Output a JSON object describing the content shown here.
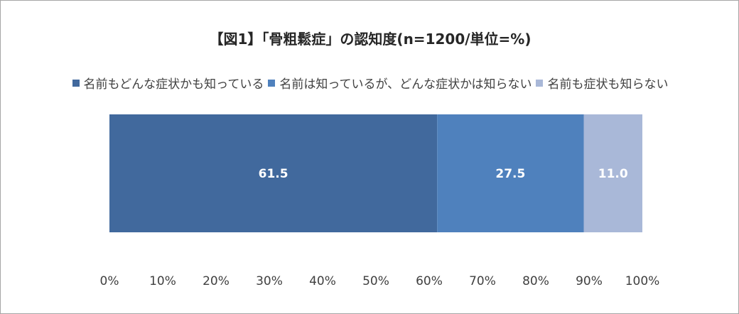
{
  "chart_data": {
    "type": "bar",
    "orientation": "horizontal",
    "stacked": true,
    "title": "【図1】「骨粗鬆症」の認知度(n=1200/単位=%)",
    "categories": [
      ""
    ],
    "series": [
      {
        "name": "名前もどんな症状かも知っている",
        "values": [
          61.5
        ],
        "color": "#41699d"
      },
      {
        "name": "名前は知っているが、どんな症状かは知らない",
        "values": [
          27.5
        ],
        "color": "#4f81bd"
      },
      {
        "name": "名前も症状も知らない",
        "values": [
          11.0
        ],
        "color": "#a9b8d8"
      }
    ],
    "data_labels": [
      "61.5",
      "27.5",
      "11.0"
    ],
    "xlim": [
      0,
      100
    ],
    "x_ticks": [
      "0%",
      "10%",
      "20%",
      "30%",
      "40%",
      "50%",
      "60%",
      "70%",
      "80%",
      "90%",
      "100%"
    ],
    "grid": false,
    "legend_position": "top"
  }
}
